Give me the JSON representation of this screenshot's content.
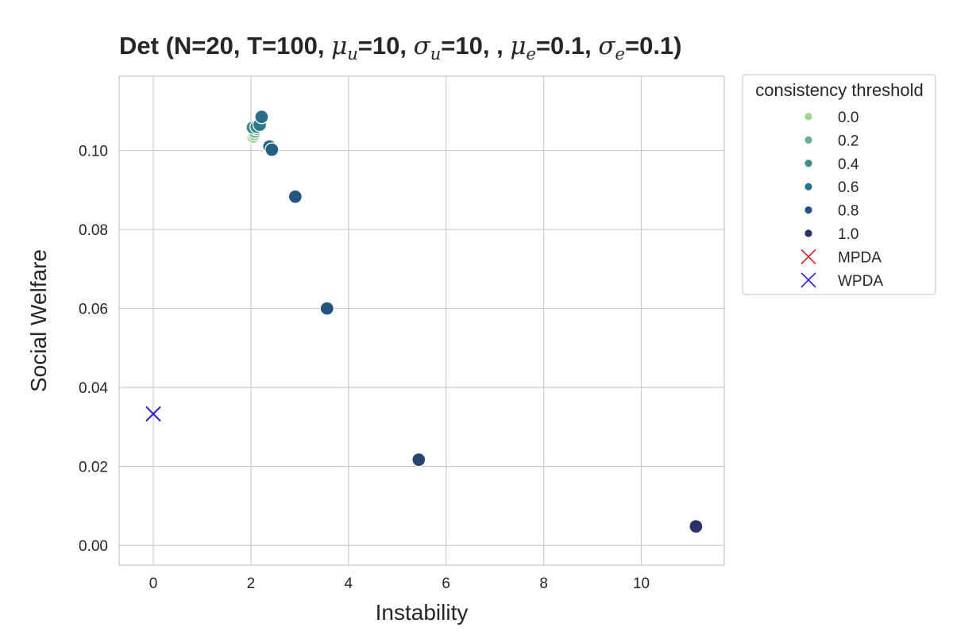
{
  "chart_data": {
    "type": "scatter",
    "title": {
      "prefix": "Det (N=20, T=100, ",
      "mu_u_sym": "μ",
      "mu_u_sub": "u",
      "mu_u_val": "=10, ",
      "sigma_u_sym": "σ",
      "sigma_u_sub": "u",
      "sigma_u_val": "=10, , ",
      "mu_e_sym": "μ",
      "mu_e_sub": "e",
      "mu_e_val": "=0.1, ",
      "sigma_e_sym": "σ",
      "sigma_e_sub": "e",
      "sigma_e_val": "=0.1)"
    },
    "xlabel": "Instability",
    "ylabel": "Social Welfare",
    "xlim": [
      -0.7,
      11.7
    ],
    "ylim": [
      -0.005,
      0.1188
    ],
    "xticks": [
      "0",
      "2",
      "4",
      "6",
      "8",
      "10"
    ],
    "xtick_values": [
      0,
      2,
      4,
      6,
      8,
      10
    ],
    "yticks": [
      "0.00",
      "0.02",
      "0.04",
      "0.06",
      "0.08",
      "0.10"
    ],
    "ytick_values": [
      0,
      0.02,
      0.04,
      0.06,
      0.08,
      0.1
    ],
    "grid": true,
    "legend": {
      "title": "consistency threshold",
      "placement": "outside-top-right",
      "hue_entries": [
        {
          "label": "0.0",
          "color": "#a1d491"
        },
        {
          "label": "0.2",
          "color": "#6bb08e"
        },
        {
          "label": "0.4",
          "color": "#3f8e8c"
        },
        {
          "label": "0.6",
          "color": "#2a6e89"
        },
        {
          "label": "0.8",
          "color": "#23537f"
        },
        {
          "label": "1.0",
          "color": "#2c3169"
        }
      ],
      "marker_entries": [
        {
          "label": "MPDA",
          "color": "#e31a1c"
        },
        {
          "label": "WPDA",
          "color": "#1f1fe0"
        }
      ]
    },
    "points": [
      {
        "x": 2.05,
        "y": 0.1035,
        "threshold": 0.0,
        "color": "#a1d491"
      },
      {
        "x": 2.07,
        "y": 0.1042,
        "threshold": 0.1,
        "color": "#8cc48f"
      },
      {
        "x": 2.08,
        "y": 0.1048,
        "threshold": 0.2,
        "color": "#6bb08e"
      },
      {
        "x": 2.1,
        "y": 0.1055,
        "threshold": 0.3,
        "color": "#559f8d"
      },
      {
        "x": 2.04,
        "y": 0.1058,
        "threshold": 0.4,
        "color": "#3f8e8c"
      },
      {
        "x": 2.12,
        "y": 0.106,
        "threshold": 0.45,
        "color": "#36828b"
      },
      {
        "x": 2.18,
        "y": 0.1065,
        "threshold": 0.5,
        "color": "#31798a"
      },
      {
        "x": 2.22,
        "y": 0.1085,
        "threshold": 0.6,
        "color": "#2a6e89"
      },
      {
        "x": 2.38,
        "y": 0.101,
        "threshold": 0.65,
        "color": "#276586"
      },
      {
        "x": 2.43,
        "y": 0.1002,
        "threshold": 0.7,
        "color": "#255e84"
      },
      {
        "x": 2.91,
        "y": 0.0883,
        "threshold": 0.75,
        "color": "#245882"
      },
      {
        "x": 3.56,
        "y": 0.06,
        "threshold": 0.8,
        "color": "#23537f"
      },
      {
        "x": 5.44,
        "y": 0.0217,
        "threshold": 0.9,
        "color": "#284475"
      },
      {
        "x": 11.12,
        "y": 0.0048,
        "threshold": 1.0,
        "color": "#2c3169"
      }
    ],
    "baselines": [
      {
        "name": "MPDA",
        "x": 0.0,
        "y": 0.0333,
        "color": "#e31a1c"
      },
      {
        "name": "WPDA",
        "x": 0.0,
        "y": 0.0333,
        "color": "#1f1fe0"
      }
    ]
  }
}
